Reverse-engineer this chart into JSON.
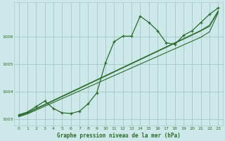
{
  "title": "Graphe pression niveau de la mer (hPa)",
  "bg_color": "#cce8e8",
  "grid_color": "#aacccc",
  "line_color": "#2d6b2d",
  "xlim": [
    -0.5,
    23.5
  ],
  "ylim": [
    1002.75,
    1007.25
  ],
  "yticks": [
    1003,
    1004,
    1005,
    1006
  ],
  "xticks": [
    0,
    1,
    2,
    3,
    4,
    5,
    6,
    7,
    8,
    9,
    10,
    11,
    12,
    13,
    14,
    15,
    16,
    17,
    18,
    19,
    20,
    21,
    22,
    23
  ],
  "main_line": [
    1003.15,
    1003.25,
    1003.45,
    1003.65,
    1003.38,
    1003.22,
    1003.2,
    1003.28,
    1003.55,
    1003.95,
    1005.05,
    1005.82,
    1006.02,
    1006.02,
    1006.75,
    1006.52,
    1006.22,
    1005.78,
    1005.72,
    1006.05,
    1006.22,
    1006.52,
    1006.82,
    1007.05
  ],
  "trend_line1": [
    1003.08,
    1003.18,
    1003.32,
    1003.46,
    1003.6,
    1003.74,
    1003.88,
    1004.02,
    1004.16,
    1004.3,
    1004.44,
    1004.58,
    1004.72,
    1004.86,
    1005.0,
    1005.14,
    1005.28,
    1005.42,
    1005.56,
    1005.7,
    1005.84,
    1005.98,
    1006.18,
    1006.88
  ],
  "trend_line2": [
    1003.1,
    1003.21,
    1003.36,
    1003.51,
    1003.66,
    1003.81,
    1003.96,
    1004.11,
    1004.26,
    1004.41,
    1004.56,
    1004.71,
    1004.86,
    1005.01,
    1005.16,
    1005.31,
    1005.46,
    1005.61,
    1005.76,
    1005.91,
    1006.06,
    1006.21,
    1006.38,
    1006.92
  ],
  "trend_line3": [
    1003.12,
    1003.24,
    1003.38,
    1003.53,
    1003.68,
    1003.83,
    1003.98,
    1004.13,
    1004.28,
    1004.43,
    1004.58,
    1004.73,
    1004.88,
    1005.03,
    1005.18,
    1005.33,
    1005.48,
    1005.63,
    1005.78,
    1005.93,
    1006.08,
    1006.23,
    1006.42,
    1006.95
  ]
}
